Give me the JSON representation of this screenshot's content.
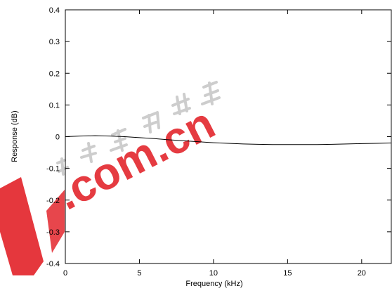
{
  "chart_data": {
    "type": "line",
    "title": "",
    "xlabel": "Frequency (kHz)",
    "ylabel": "Response (dB)",
    "xlim": [
      0,
      22
    ],
    "ylim": [
      -0.4,
      0.4
    ],
    "x_ticks": [
      0,
      5,
      10,
      15,
      20
    ],
    "y_ticks": [
      0.4,
      0.3,
      0.2,
      0.1,
      0,
      -0.1,
      -0.2,
      -0.3,
      -0.4
    ],
    "grid": false,
    "legend": "none",
    "series": [
      {
        "color": "#000000",
        "x": [
          0,
          1,
          2,
          3,
          4,
          5,
          6,
          7,
          8,
          9,
          10,
          11,
          12,
          13,
          14,
          15,
          16,
          17,
          18,
          19,
          20,
          21,
          22
        ],
        "y": [
          0.0,
          0.002,
          0.003,
          0.002,
          0.0,
          -0.003,
          -0.006,
          -0.01,
          -0.013,
          -0.016,
          -0.019,
          -0.021,
          -0.023,
          -0.024,
          -0.025,
          -0.025,
          -0.025,
          -0.025,
          -0.024,
          -0.023,
          -0.022,
          -0.021,
          -0.02
        ]
      }
    ]
  },
  "watermark": {
    "text_cn": "电子产品世界",
    "text_domain": ".com.cn",
    "color": "#e3262d",
    "cn_color": "#b8b8b8"
  }
}
